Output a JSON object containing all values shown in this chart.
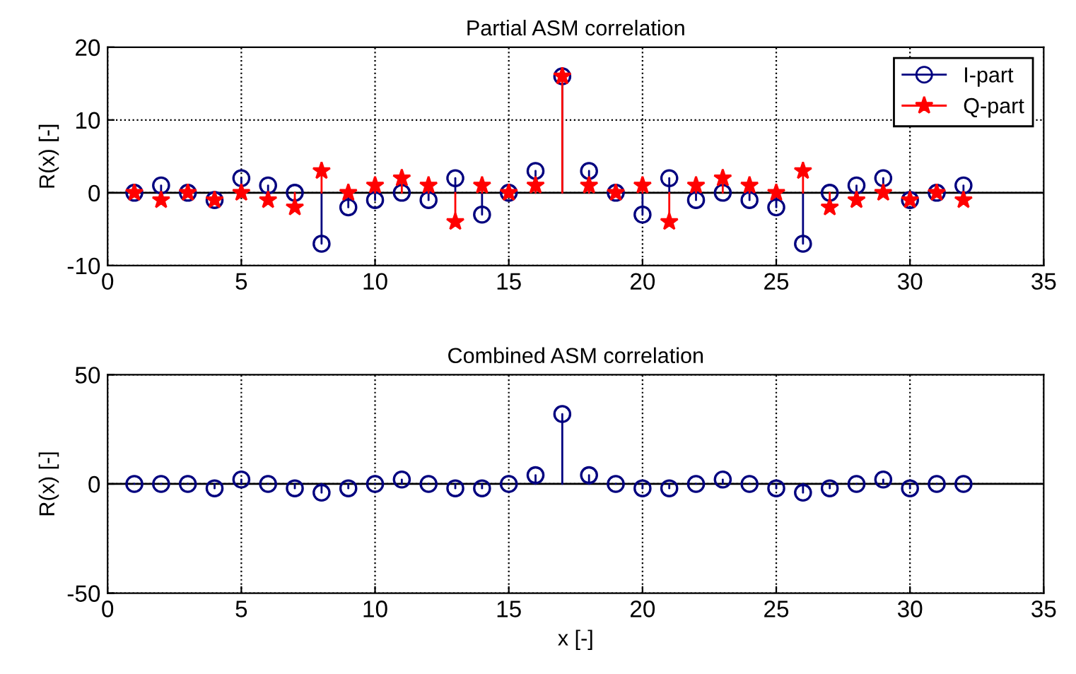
{
  "chart_data": [
    {
      "type": "lollipop",
      "title": "Partial ASM correlation",
      "ylabel": "R(x) [-]",
      "x": [
        1,
        2,
        3,
        4,
        5,
        6,
        7,
        8,
        9,
        10,
        11,
        12,
        13,
        14,
        15,
        16,
        17,
        18,
        19,
        20,
        21,
        22,
        23,
        24,
        25,
        26,
        27,
        28,
        29,
        30,
        31,
        32
      ],
      "series": [
        {
          "name": "I-part",
          "color": "#00007f",
          "marker": "circle",
          "values": [
            0,
            1,
            0,
            -1,
            2,
            1,
            0,
            -7,
            -2,
            -1,
            0,
            -1,
            2,
            -3,
            0,
            3,
            16,
            3,
            0,
            -3,
            2,
            -1,
            0,
            -1,
            -2,
            -7,
            0,
            1,
            2,
            -1,
            0,
            1
          ]
        },
        {
          "name": "Q-part",
          "color": "#ff0000",
          "marker": "star",
          "values": [
            0,
            -1,
            0,
            -1,
            0,
            -1,
            -2,
            3,
            0,
            1,
            2,
            1,
            -4,
            1,
            0,
            1,
            16,
            1,
            0,
            1,
            -4,
            1,
            2,
            1,
            0,
            3,
            -2,
            -1,
            0,
            -1,
            0,
            -1
          ]
        }
      ],
      "xlim": [
        0,
        35
      ],
      "xticks": [
        0,
        5,
        10,
        15,
        20,
        25,
        30,
        35
      ],
      "ylim": [
        -10,
        20
      ],
      "yticks": [
        -10,
        0,
        10,
        20
      ],
      "grid": true,
      "legend": "top right",
      "line_style": "solid"
    },
    {
      "type": "lollipop",
      "title": "Combined ASM correlation",
      "ylabel": "R(x) [-]",
      "xlabel": "x [-]",
      "x": [
        1,
        2,
        3,
        4,
        5,
        6,
        7,
        8,
        9,
        10,
        11,
        12,
        13,
        14,
        15,
        16,
        17,
        18,
        19,
        20,
        21,
        22,
        23,
        24,
        25,
        26,
        27,
        28,
        29,
        30,
        31,
        32
      ],
      "series": [
        {
          "color": "#00007f",
          "marker": "circle",
          "values": [
            0,
            0,
            0,
            -2,
            2,
            0,
            -2,
            -4,
            -2,
            0,
            2,
            0,
            -2,
            -2,
            0,
            4,
            32,
            4,
            0,
            -2,
            -2,
            0,
            2,
            0,
            -2,
            -4,
            -2,
            0,
            2,
            -2,
            0,
            0
          ]
        }
      ],
      "xlim": [
        0,
        35
      ],
      "xticks": [
        0,
        5,
        10,
        15,
        20,
        25,
        30,
        35
      ],
      "ylim": [
        -50,
        50
      ],
      "yticks": [
        -50,
        0,
        50
      ],
      "grid": true,
      "line_style": "solid"
    }
  ]
}
